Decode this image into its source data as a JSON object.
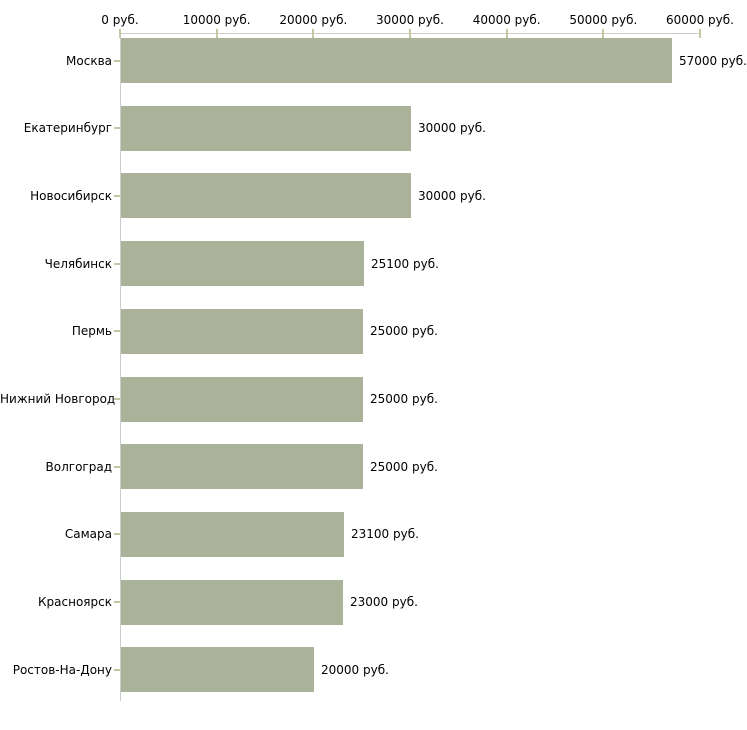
{
  "chart_data": {
    "type": "bar",
    "orientation": "horizontal",
    "title": "",
    "unit": "руб.",
    "categories": [
      "Москва",
      "Екатеринбург",
      "Новосибирск",
      "Челябинск",
      "Пермь",
      "Нижний Новгород",
      "Волгоград",
      "Самара",
      "Красноярск",
      "Ростов-На-Дону"
    ],
    "values": [
      57000,
      30000,
      30000,
      25100,
      25000,
      25000,
      25000,
      23100,
      23000,
      20000
    ],
    "value_labels": [
      "57000 руб.",
      "30000 руб.",
      "30000 руб.",
      "25100 руб.",
      "25000 руб.",
      "25000 руб.",
      "25000 руб.",
      "23100 руб.",
      "23000 руб.",
      "20000 руб."
    ],
    "xlim": [
      0,
      60000
    ],
    "x_ticks": [
      0,
      10000,
      20000,
      30000,
      40000,
      50000,
      60000
    ],
    "x_tick_labels": [
      "0 руб.",
      "10000 руб.",
      "20000 руб.",
      "30000 руб.",
      "40000 руб.",
      "50000 руб.",
      "60000 руб."
    ],
    "axis_position": "top",
    "grid": false,
    "legend": null,
    "colors": {
      "bar": "#abb29a",
      "axis_line": "#cccccc",
      "tick": "#c6c6a3",
      "text": "#000000",
      "background": "#ffffff"
    }
  }
}
